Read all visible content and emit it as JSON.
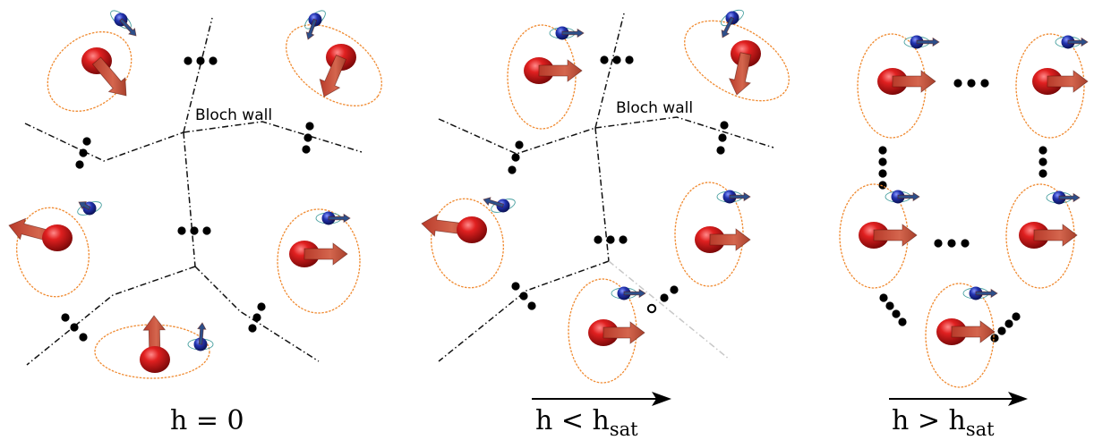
{
  "panels": [
    {
      "field_label": "h = 0",
      "label_main": "h = 0",
      "label_sub": "",
      "field_arrow": false,
      "wall_label": "Bloch wall"
    },
    {
      "field_label": "h < hsat",
      "label_main": "h < h",
      "label_sub": "sat",
      "field_arrow": true,
      "wall_label": "Bloch wall"
    },
    {
      "field_label": "h > hsat",
      "label_main": "h > h",
      "label_sub": "sat",
      "field_arrow": true,
      "wall_label": ""
    }
  ],
  "colors": {
    "big_spin": "#d81b1b",
    "big_arrow": "#c0503a",
    "small_spin": "#1f2fa8",
    "small_arrow": "#2d4f8a",
    "orbit_big": "#f08a30",
    "orbit_small": "#48a0a0",
    "wall": "#111111",
    "wall_faded": "#c8c8c8"
  },
  "icons": [
    "large-spin-sphere",
    "spin-arrow",
    "small-spin-sphere",
    "precession-orbit",
    "ellipsis-dots",
    "field-direction-arrow"
  ]
}
